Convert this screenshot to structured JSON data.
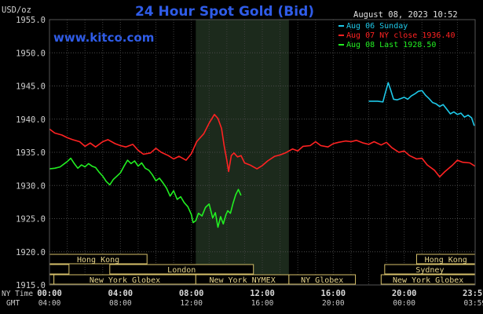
{
  "chart_data": {
    "type": "line",
    "title": "24 Hour Spot Gold (Bid)",
    "watermark": "www.kitco.com",
    "unit_label": "USD/oz",
    "timestamp": "August 08, 2023 10:52",
    "ylim": [
      1915.0,
      1955.0
    ],
    "y_ticks": [
      "1955.0",
      "1950.0",
      "1945.0",
      "1940.0",
      "1935.0",
      "1930.0",
      "1925.0",
      "1920.0",
      "1915.0"
    ],
    "x_ticks": [
      {
        "ny": "00:00",
        "gmt": "04:00"
      },
      {
        "ny": "04:00",
        "gmt": "08:00"
      },
      {
        "ny": "08:00",
        "gmt": "12:00"
      },
      {
        "ny": "12:00",
        "gmt": "16:00"
      },
      {
        "ny": "16:00",
        "gmt": "20:00"
      },
      {
        "ny": "20:00",
        "gmt": "00:00"
      },
      {
        "ny": "23:59",
        "gmt": "03:59"
      }
    ],
    "x_axis_labels": {
      "ny": "NY Time",
      "gmt": "GMT"
    },
    "legend": [
      {
        "label": "Aug 06 Sunday",
        "color": "#1ec8e8"
      },
      {
        "label": "Aug 07 NY close 1936.40",
        "color": "#ff2222"
      },
      {
        "label": "Aug 08 Last 1928.50",
        "color": "#22ee22"
      }
    ],
    "highlight_band_hours": [
      8.25,
      13.5
    ],
    "sessions": [
      {
        "row": 0,
        "label": "Hong Kong",
        "start": 0,
        "end": 5.5
      },
      {
        "row": 0,
        "label": "Hong Kong",
        "start": 20.7,
        "end": 24
      },
      {
        "row": 1,
        "label": "",
        "start": 0,
        "end": 1.1
      },
      {
        "row": 1,
        "label": "London",
        "start": 3.4,
        "end": 11.5
      },
      {
        "row": 1,
        "label": "Sydney",
        "start": 18.9,
        "end": 24
      },
      {
        "row": 2,
        "label": "",
        "start": 0,
        "end": 0.25
      },
      {
        "row": 2,
        "label": "New York Globex",
        "start": 0.25,
        "end": 8.25
      },
      {
        "row": 2,
        "label": "New York NYMEX",
        "start": 8.25,
        "end": 13.5
      },
      {
        "row": 2,
        "label": "NY Globex",
        "start": 13.5,
        "end": 17.25
      },
      {
        "row": 2,
        "label": "New York Globex",
        "start": 18.7,
        "end": 24
      }
    ],
    "series": [
      {
        "name": "Aug 06 Sunday",
        "color": "#1ec8e8",
        "x": [
          18.0,
          18.5,
          18.8,
          18.9,
          19.1,
          19.25,
          19.4,
          19.6,
          19.8,
          20.0,
          20.2,
          20.4,
          20.6,
          20.8,
          21.0,
          21.2,
          21.4,
          21.6,
          21.8,
          22.0,
          22.2,
          22.4,
          22.6,
          22.8,
          23.0,
          23.2,
          23.4,
          23.6,
          23.8,
          23.95
        ],
        "y": [
          1942.7,
          1942.7,
          1942.6,
          1943.6,
          1945.5,
          1944.3,
          1943.0,
          1942.9,
          1943.1,
          1943.3,
          1943.0,
          1943.5,
          1943.8,
          1944.2,
          1944.3,
          1943.6,
          1943.1,
          1942.5,
          1942.3,
          1941.9,
          1942.2,
          1941.5,
          1940.8,
          1941.1,
          1940.7,
          1940.9,
          1940.3,
          1940.6,
          1940.2,
          1939.0
        ]
      },
      {
        "name": "Aug 07 NY close 1936.40",
        "color": "#ff2222",
        "x": [
          0,
          0.3,
          0.7,
          1.0,
          1.3,
          1.7,
          2.0,
          2.3,
          2.6,
          3.0,
          3.3,
          3.7,
          4.0,
          4.3,
          4.7,
          5.0,
          5.3,
          5.7,
          6.0,
          6.3,
          6.7,
          7.0,
          7.3,
          7.7,
          8.0,
          8.3,
          8.7,
          9.0,
          9.3,
          9.5,
          9.7,
          9.85,
          10.0,
          10.1,
          10.25,
          10.4,
          10.6,
          10.8,
          11.0,
          11.3,
          11.7,
          12.0,
          12.3,
          12.7,
          13.0,
          13.3,
          13.7,
          14.0,
          14.3,
          14.7,
          15.0,
          15.3,
          15.7,
          16.0,
          16.3,
          16.7,
          17.0,
          17.3,
          17.7,
          18.0,
          18.3,
          18.7,
          19.0,
          19.3,
          19.7,
          20.0,
          20.3,
          20.7,
          21.0,
          21.3,
          21.7,
          22.0,
          22.3,
          22.7,
          23.0,
          23.3,
          23.7,
          23.99
        ],
        "y": [
          1938.5,
          1937.9,
          1937.6,
          1937.2,
          1936.9,
          1936.6,
          1935.9,
          1936.4,
          1935.8,
          1936.6,
          1936.9,
          1936.3,
          1936.0,
          1935.8,
          1936.2,
          1935.3,
          1934.7,
          1934.9,
          1935.6,
          1935.0,
          1934.5,
          1934.0,
          1934.4,
          1933.8,
          1934.8,
          1936.6,
          1937.8,
          1939.4,
          1940.7,
          1940.1,
          1938.6,
          1936.0,
          1933.8,
          1932.1,
          1934.5,
          1934.9,
          1934.3,
          1934.5,
          1933.4,
          1933.1,
          1932.5,
          1933.0,
          1933.7,
          1934.4,
          1934.6,
          1934.9,
          1935.5,
          1935.2,
          1935.9,
          1936.0,
          1936.6,
          1936.0,
          1935.8,
          1936.3,
          1936.5,
          1936.7,
          1936.6,
          1936.8,
          1936.4,
          1936.2,
          1936.6,
          1936.1,
          1936.5,
          1935.7,
          1935.0,
          1935.2,
          1934.5,
          1934.0,
          1934.1,
          1933.1,
          1932.3,
          1931.3,
          1932.1,
          1933.0,
          1933.8,
          1933.5,
          1933.4,
          1932.9
        ]
      },
      {
        "name": "Aug 08 Last 1928.50",
        "color": "#22ee22",
        "x": [
          0,
          0.3,
          0.6,
          1.0,
          1.2,
          1.4,
          1.6,
          1.8,
          2.0,
          2.2,
          2.4,
          2.6,
          2.8,
          3.0,
          3.2,
          3.4,
          3.6,
          3.8,
          4.0,
          4.2,
          4.4,
          4.6,
          4.8,
          5.0,
          5.2,
          5.4,
          5.6,
          5.8,
          6.0,
          6.2,
          6.4,
          6.6,
          6.8,
          7.0,
          7.2,
          7.4,
          7.6,
          7.8,
          8.0,
          8.1,
          8.25,
          8.4,
          8.6,
          8.8,
          9.0,
          9.2,
          9.35,
          9.5,
          9.65,
          9.8,
          9.95,
          10.05,
          10.2,
          10.35,
          10.5,
          10.65,
          10.8
        ],
        "y": [
          1932.5,
          1932.6,
          1932.8,
          1933.6,
          1934.1,
          1933.3,
          1932.6,
          1933.1,
          1932.8,
          1933.3,
          1932.9,
          1932.7,
          1932.0,
          1931.4,
          1930.6,
          1930.1,
          1930.9,
          1931.4,
          1931.9,
          1932.9,
          1933.8,
          1933.3,
          1933.7,
          1932.9,
          1933.4,
          1932.6,
          1932.3,
          1931.6,
          1930.7,
          1931.1,
          1930.4,
          1929.6,
          1928.4,
          1929.2,
          1927.9,
          1928.3,
          1927.4,
          1926.8,
          1925.6,
          1924.4,
          1924.7,
          1925.8,
          1925.4,
          1926.7,
          1927.2,
          1925.1,
          1925.9,
          1923.7,
          1925.3,
          1924.2,
          1925.6,
          1926.2,
          1925.8,
          1927.3,
          1928.6,
          1929.4,
          1928.5
        ]
      }
    ]
  }
}
